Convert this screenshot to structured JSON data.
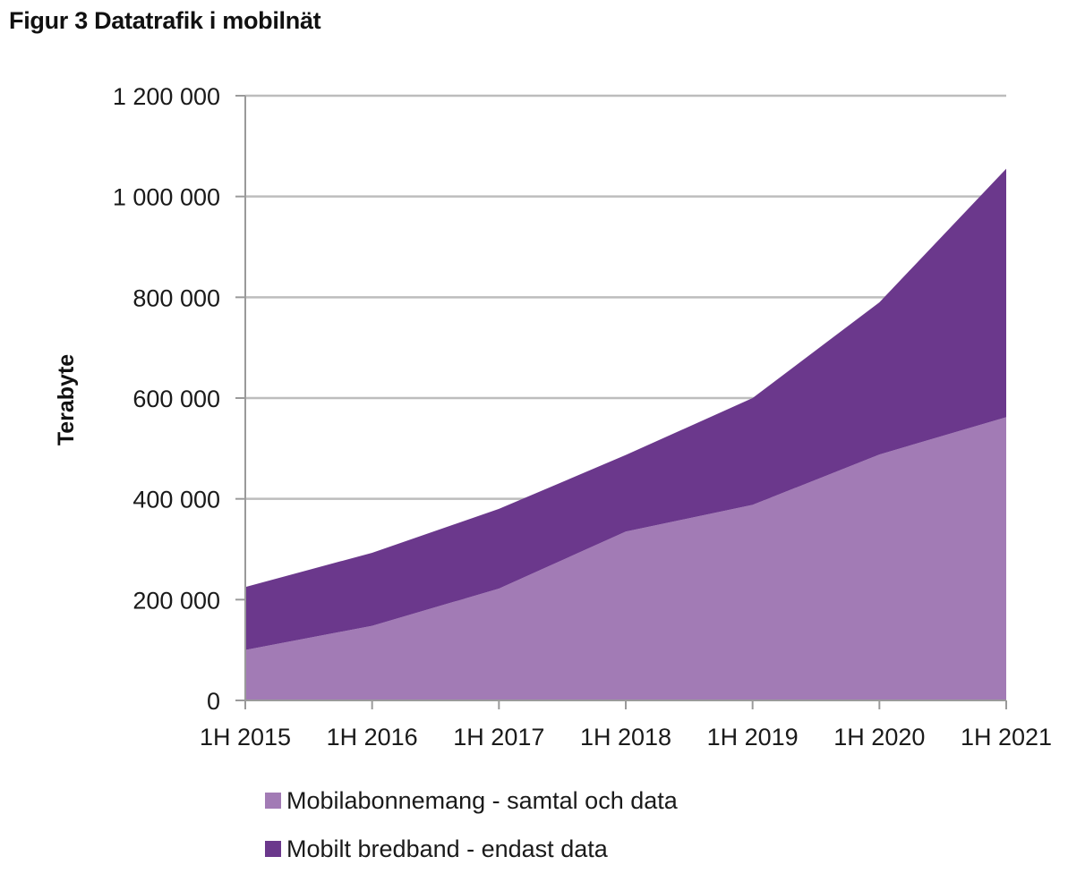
{
  "figure": {
    "title": "Figur 3 Datatrafik i mobilnät"
  },
  "chart_data": {
    "type": "area",
    "stacked": true,
    "title": "Figur 3 Datatrafik i mobilnät",
    "xlabel": "",
    "ylabel": "Terabyte",
    "categories": [
      "1H 2015",
      "1H 2016",
      "1H 2017",
      "1H 2018",
      "1H 2019",
      "1H 2020",
      "1H 2021"
    ],
    "ylim": [
      0,
      1200000
    ],
    "yticks": [
      0,
      200000,
      400000,
      600000,
      800000,
      1000000,
      1200000
    ],
    "ytick_labels": [
      "0",
      "200 000",
      "400 000",
      "600 000",
      "800 000",
      "1 000 000",
      "1 200 000"
    ],
    "grid": true,
    "legend_position": "bottom",
    "series": [
      {
        "name": "Mobilabonnemang - samtal och data",
        "color": "#a27bb5",
        "values": [
          100000,
          148000,
          222000,
          335000,
          388000,
          488000,
          562000
        ]
      },
      {
        "name": "Mobilt bredband - endast data",
        "color": "#6b388c",
        "values": [
          125000,
          145000,
          158000,
          152000,
          212000,
          302000,
          493000
        ]
      }
    ]
  }
}
